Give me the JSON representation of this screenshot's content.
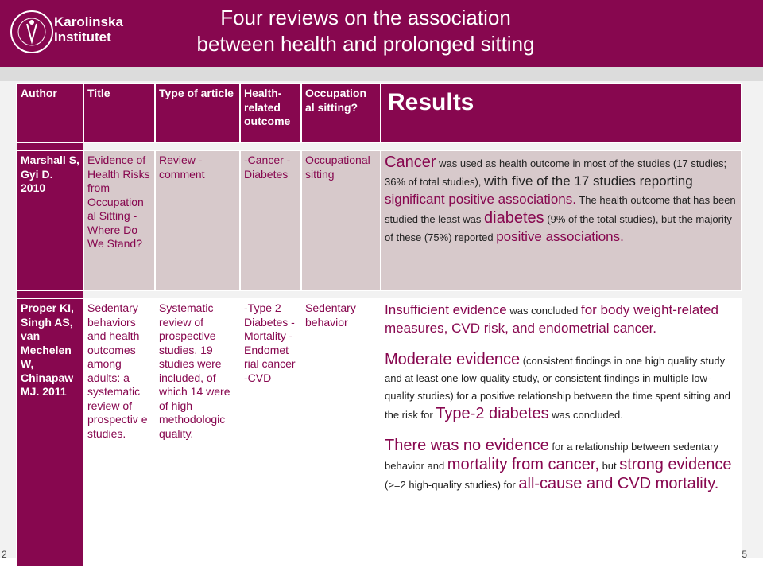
{
  "header": {
    "logo_seal_text": "KAROLINSKA INSTITUTET ANNO 1810",
    "logo_line1": "Karolinska",
    "logo_line2": "Institutet",
    "title_line1": "Four reviews on the association",
    "title_line2": "between health and prolonged sitting"
  },
  "columns": {
    "author": "Author",
    "title": "Title",
    "type": "Type of article",
    "outcome": "Health-related outcome",
    "occupational": "Occupation al sitting?",
    "results": "Results"
  },
  "row1": {
    "author": "Marshall S, Gyi D. 2010",
    "title": "Evidence of Health Risks from Occupation al Sitting - Where Do We Stand?",
    "type": "Review - comment",
    "outcome": "-Cancer -Diabetes",
    "occupational": "Occupational sitting",
    "r1": "Cancer",
    "r2": " was used as health outcome in most of the studies (17 studies; 36% of total studies), ",
    "r3": "with five of the 17 studies reporting ",
    "r4": "significant positive associations.",
    "r5": " The health outcome that has been studied the least was ",
    "r6": "diabetes",
    "r7": " (9% of the total studies), but the majority of these (75%) reported ",
    "r8": "positive associations."
  },
  "row2": {
    "author": "Proper KI, Singh AS, van Mechelen W, Chinapaw MJ. 2011",
    "title": "Sedentary behaviors and health outcomes among adults: a systematic review of prospectiv e studies.",
    "type": "Systematic review of prospective studies. 19 studies were included, of which 14 were of high methodologic quality.",
    "outcome": "-Type 2 Diabetes -Mortality - Endomet rial cancer -CVD",
    "occupational": "Sedentary behavior",
    "a1": "Insufficient evidence",
    "a2": " was concluded ",
    "a3": "for body weight-related measures, CVD risk, and endometrial cancer.",
    "b1": "Moderate evidence",
    "b2": " (consistent findings in one high quality study and at least one low-quality study, or consistent findings in multiple low-quality studies) for a positive relationship between the time spent sitting and the risk for ",
    "b3": "Type-2 diabetes",
    "b4": " was concluded.",
    "c1": "There was no evidence",
    "c2": " for a relationship between sedentary behavior and ",
    "c3": "mortality from cancer,",
    "c4": " but ",
    "c5": "strong evidence",
    "c6": " (>=2 high-quality studies) for ",
    "c7": "all-cause and CVD mortality."
  },
  "footer": {
    "left": "2",
    "page": "5"
  },
  "colors": {
    "brand": "#87074f",
    "row_tint": "#d7c9cb"
  }
}
